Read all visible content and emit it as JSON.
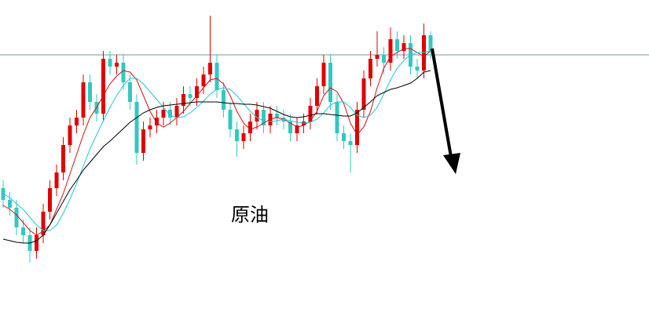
{
  "chart_data": {
    "type": "candlestick",
    "label": "原油",
    "ylim": [
      0,
      412
    ],
    "up_color": "#e00000",
    "down_color": "#33c8c0",
    "hline": {
      "value": 342,
      "color": "#6f98a6"
    },
    "open": [
      172,
      157,
      147,
      122,
      112,
      92,
      112,
      142,
      172,
      192,
      227,
      252,
      262,
      307,
      282,
      267,
      337,
      327,
      332,
      307,
      282,
      217,
      247,
      252,
      262,
      272,
      262,
      277,
      292,
      287,
      302,
      317,
      332,
      297,
      272,
      247,
      232,
      242,
      257,
      272,
      252,
      267,
      262,
      257,
      242,
      252,
      257,
      277,
      302,
      332,
      282,
      242,
      232,
      227,
      272,
      312,
      337,
      342,
      332,
      362,
      347,
      357,
      327,
      322,
      367
    ],
    "high": [
      182,
      167,
      157,
      132,
      122,
      122,
      152,
      182,
      202,
      237,
      262,
      272,
      317,
      317,
      292,
      347,
      347,
      342,
      342,
      317,
      292,
      257,
      262,
      272,
      282,
      282,
      287,
      302,
      302,
      312,
      327,
      392,
      342,
      307,
      282,
      257,
      252,
      267,
      282,
      282,
      277,
      277,
      272,
      267,
      262,
      267,
      287,
      312,
      342,
      342,
      292,
      252,
      242,
      282,
      322,
      347,
      372,
      352,
      377,
      372,
      367,
      367,
      337,
      382,
      372
    ],
    "low": [
      147,
      137,
      112,
      102,
      77,
      82,
      102,
      132,
      162,
      182,
      217,
      242,
      252,
      272,
      257,
      257,
      317,
      317,
      297,
      272,
      202,
      207,
      237,
      242,
      252,
      252,
      252,
      267,
      277,
      277,
      292,
      307,
      287,
      262,
      237,
      212,
      222,
      232,
      247,
      242,
      242,
      252,
      247,
      232,
      232,
      242,
      247,
      267,
      292,
      272,
      232,
      222,
      192,
      217,
      262,
      302,
      327,
      317,
      322,
      337,
      337,
      317,
      312,
      312,
      337
    ],
    "close": [
      157,
      147,
      122,
      112,
      92,
      112,
      142,
      172,
      192,
      227,
      252,
      262,
      307,
      282,
      267,
      337,
      327,
      332,
      307,
      282,
      217,
      247,
      252,
      262,
      272,
      262,
      277,
      292,
      287,
      302,
      317,
      332,
      297,
      272,
      247,
      232,
      242,
      257,
      272,
      252,
      267,
      262,
      257,
      242,
      252,
      257,
      277,
      302,
      332,
      282,
      242,
      232,
      227,
      272,
      312,
      337,
      342,
      332,
      362,
      347,
      357,
      327,
      322,
      367,
      347
    ],
    "lines": [
      {
        "color": "#d01010",
        "values": [
          150,
          145,
          138,
          128,
          118,
          112,
          117,
          125,
          145,
          165,
          190,
          215,
          240,
          262,
          275,
          290,
          305,
          315,
          322,
          320,
          310,
          290,
          270,
          255,
          250,
          255,
          262,
          270,
          280,
          290,
          300,
          310,
          312,
          305,
          290,
          270,
          255,
          247,
          250,
          255,
          260,
          262,
          260,
          255,
          250,
          252,
          258,
          270,
          290,
          300,
          295,
          280,
          255,
          240,
          250,
          270,
          300,
          325,
          340,
          345,
          350,
          350,
          345,
          340,
          347
        ]
      },
      {
        "color": "#20c8d8",
        "values": [
          165,
          160,
          152,
          145,
          135,
          125,
          118,
          118,
          125,
          140,
          158,
          178,
          200,
          222,
          240,
          258,
          275,
          290,
          303,
          312,
          312,
          305,
          295,
          285,
          275,
          265,
          262,
          263,
          268,
          275,
          283,
          292,
          298,
          300,
          298,
          290,
          280,
          270,
          262,
          258,
          257,
          258,
          260,
          258,
          256,
          255,
          256,
          260,
          268,
          278,
          282,
          282,
          275,
          265,
          262,
          265,
          275,
          292,
          310,
          325,
          335,
          342,
          345,
          345,
          347
        ]
      },
      {
        "color": "#000000",
        "values": [
          107,
          105,
          103,
          102,
          102,
          105,
          112,
          125,
          140,
          155,
          170,
          182,
          195,
          205,
          215,
          225,
          232,
          240,
          248,
          256,
          262,
          268,
          272,
          275,
          277,
          278,
          279,
          280,
          281,
          282,
          282,
          282,
          282,
          281,
          280,
          280,
          279,
          279,
          278,
          276,
          274,
          270,
          266,
          263,
          262,
          263,
          265,
          267,
          267,
          266,
          265,
          264,
          264,
          268,
          275,
          282,
          290,
          294,
          298,
          300,
          303,
          306,
          312,
          320,
          322
        ]
      }
    ]
  }
}
